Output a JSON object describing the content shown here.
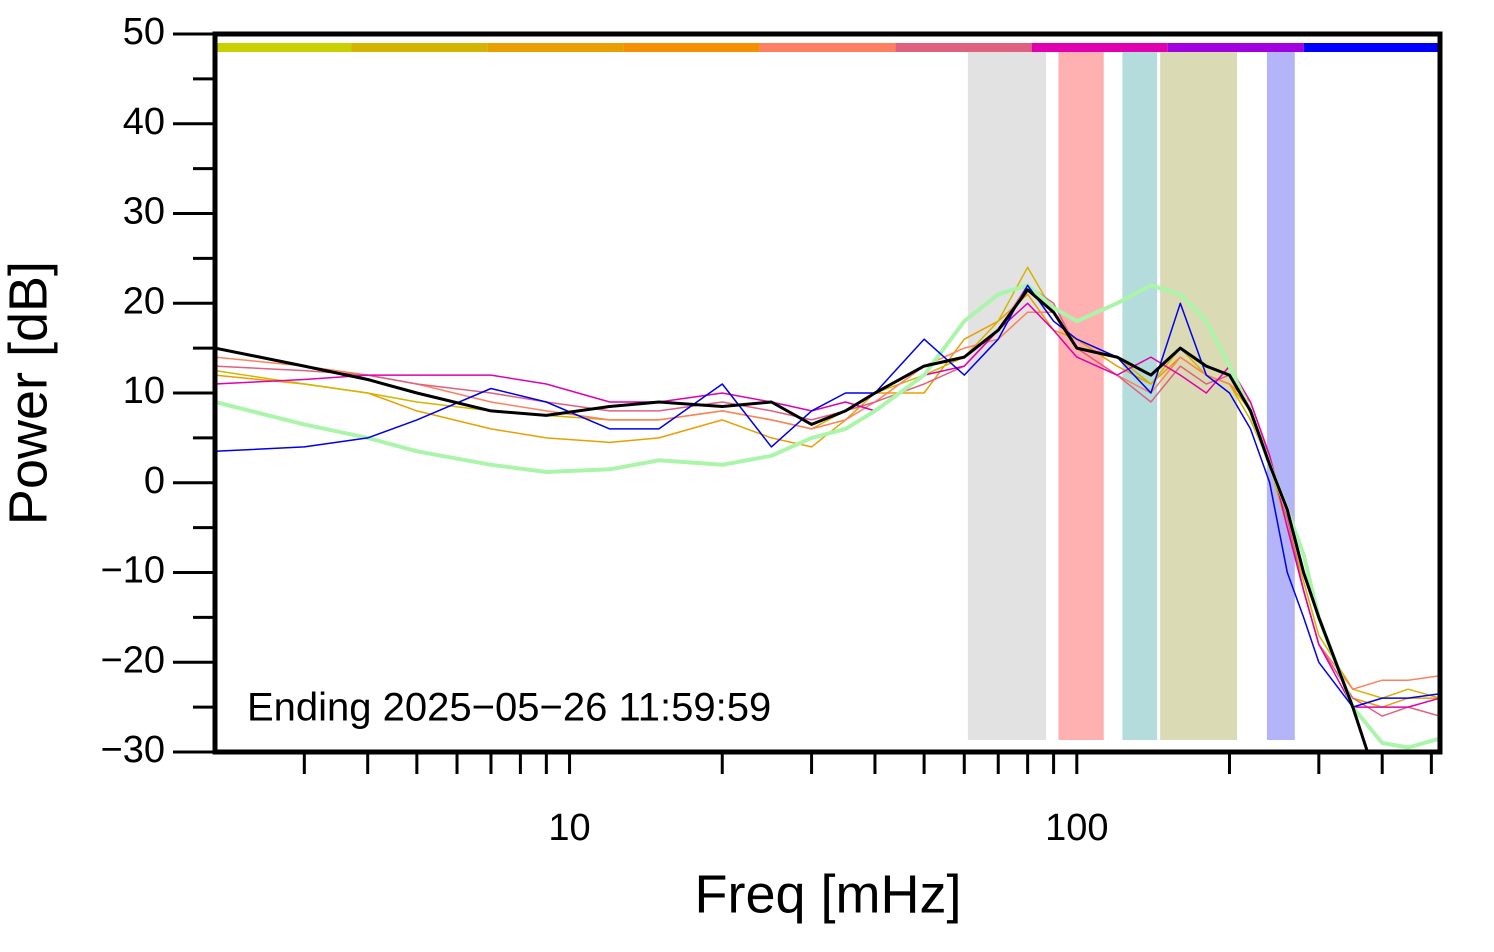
{
  "chart_data": {
    "type": "line",
    "x_label": "Freq [mHz]",
    "y_label": "Power [dB]",
    "annotation": "Ending 2025−05−26 11:59:59",
    "log_x": true,
    "xlim": [
      2,
      520
    ],
    "xticks": [
      10,
      100
    ],
    "xminor_ticks": [
      3,
      4,
      5,
      6,
      7,
      8,
      9,
      20,
      30,
      40,
      50,
      60,
      70,
      80,
      90,
      200,
      300,
      400,
      500
    ],
    "ylim": [
      -30,
      50
    ],
    "yticks": [
      {
        "value": -30,
        "label": "−30"
      },
      {
        "value": -20,
        "label": "−20"
      },
      {
        "value": -10,
        "label": "−10"
      },
      0,
      10,
      20,
      30,
      40,
      50
    ],
    "yminor_ticks": [
      -25,
      -15,
      -5,
      5,
      15,
      25,
      35,
      45
    ],
    "color_bar": [
      "#c8d000",
      "#d4b400",
      "#e8a000",
      "#f59000",
      "#ff8060",
      "#e06080",
      "#e000b0",
      "#a000e0",
      "#0000ff"
    ],
    "bands": [
      {
        "x": [
          61,
          87
        ],
        "color": "#e2e2e2"
      },
      {
        "x": [
          92,
          113
        ],
        "color": "#ffb0b0"
      },
      {
        "x": [
          123,
          144
        ],
        "color": "#b4dcdc"
      },
      {
        "x": [
          146,
          207
        ],
        "color": "#dadab4"
      },
      {
        "x": [
          237,
          269
        ],
        "color": "#b4b4f8"
      }
    ],
    "x": [
      2,
      3,
      4,
      5,
      7,
      9,
      12,
      15,
      20,
      25,
      30,
      35,
      40,
      50,
      60,
      70,
      80,
      90,
      100,
      120,
      140,
      160,
      180,
      200,
      220,
      240,
      260,
      280,
      300,
      350,
      400,
      450,
      520
    ],
    "series": [
      {
        "color": "#e8a000",
        "width": 1.5,
        "values": [
          12,
          11,
          10,
          8,
          6,
          5,
          4.5,
          5,
          7,
          5,
          4,
          7,
          10,
          10,
          16,
          18,
          21,
          17,
          16,
          13,
          11,
          14,
          12,
          11,
          8,
          2,
          -5,
          -12,
          -18,
          -24,
          -25,
          -24,
          -24
        ]
      },
      {
        "color": "#d4b400",
        "width": 1.5,
        "values": [
          12.5,
          11,
          10,
          9,
          8,
          7.5,
          7,
          7,
          8,
          7,
          6,
          8,
          10,
          12,
          14,
          18,
          24,
          19,
          15,
          14,
          11,
          15,
          12,
          11,
          7,
          2,
          -4,
          -11,
          -17,
          -23,
          -24,
          -23,
          -24
        ]
      },
      {
        "color": "#ff8060",
        "width": 1.5,
        "values": [
          14,
          13,
          12,
          11,
          9,
          8,
          7,
          7,
          8,
          7,
          6,
          7,
          9,
          13,
          15,
          16,
          19,
          19,
          15,
          12,
          10,
          14,
          12,
          11,
          9,
          3,
          -4,
          -12,
          -18,
          -23,
          -22,
          -22,
          -21.5
        ]
      },
      {
        "color": "#e06080",
        "width": 1.5,
        "values": [
          13,
          12.5,
          12,
          11,
          10,
          9,
          8,
          8,
          9,
          8,
          7,
          8,
          9,
          11,
          13,
          17,
          22,
          20,
          15,
          12,
          9,
          13,
          11,
          12,
          8,
          3,
          -4,
          -12,
          -18,
          -24,
          -26,
          -25,
          -26
        ]
      },
      {
        "color": "#e000b0",
        "width": 1.5,
        "values": [
          11,
          11.5,
          12,
          12,
          12,
          11,
          9,
          9,
          10,
          9,
          8,
          9,
          8,
          12,
          13,
          17,
          20,
          17,
          14,
          12,
          14,
          12,
          10,
          13,
          9,
          3,
          -5,
          -12,
          -18,
          -25,
          -25,
          -25,
          -24
        ]
      },
      {
        "color": "#aaf5aa",
        "width": 4,
        "values": [
          9,
          6.5,
          5,
          3.5,
          2,
          1.2,
          1.5,
          2.5,
          2,
          3,
          5,
          6,
          8,
          12,
          18,
          21,
          22,
          19.5,
          18,
          20,
          22,
          21,
          18,
          13,
          8,
          2,
          -3,
          -8,
          -15,
          -25,
          -29,
          -29.5,
          -28.5
        ]
      },
      {
        "color": "#0000ee",
        "width": 1.5,
        "values": [
          3.5,
          4,
          5,
          7,
          10.5,
          9,
          6,
          6,
          11,
          4,
          8,
          10,
          10,
          16,
          12,
          16,
          22,
          18,
          16,
          14,
          10,
          20,
          12,
          10,
          6,
          0,
          -10,
          -15,
          -20,
          -25,
          -24,
          -24,
          -23.5
        ]
      },
      {
        "color": "#000000",
        "width": 3,
        "values": [
          15,
          13,
          11.5,
          10,
          8,
          7.5,
          8.5,
          9,
          8.5,
          9,
          6.5,
          8,
          10,
          13,
          14,
          17,
          21.5,
          19,
          15,
          14,
          12,
          15,
          13,
          12,
          8,
          2,
          -3,
          -10,
          -15,
          -25,
          -35,
          null,
          null
        ]
      }
    ]
  }
}
